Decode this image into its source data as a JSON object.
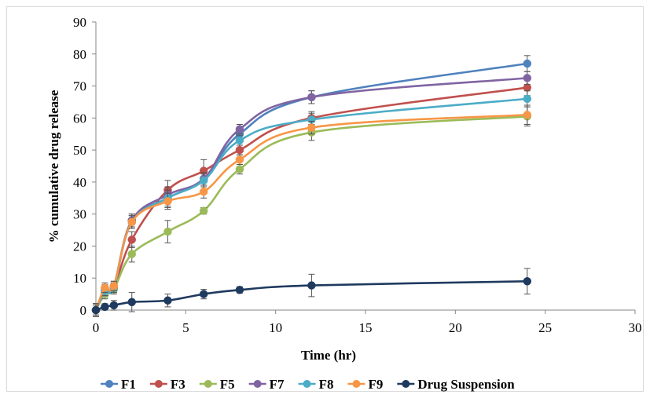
{
  "chart_data": {
    "type": "line",
    "title": "",
    "xlabel": "Time (hr)",
    "ylabel": "% cumulative drug release",
    "xlim": [
      0,
      30
    ],
    "ylim": [
      0,
      90
    ],
    "xticks": [
      0,
      5,
      10,
      15,
      20,
      25,
      30
    ],
    "yticks": [
      0,
      10,
      20,
      30,
      40,
      50,
      60,
      70,
      80,
      90
    ],
    "grid": false,
    "legend_position": "bottom",
    "x": [
      0,
      0.5,
      1,
      2,
      4,
      6,
      8,
      12,
      24
    ],
    "series": [
      {
        "name": "F1",
        "color": "#4F81BD",
        "values": [
          0,
          6.5,
          7.5,
          28,
          35,
          41,
          55,
          66.5,
          77
        ],
        "errors": [
          2,
          1.5,
          1.5,
          2,
          3,
          2,
          2,
          2,
          2.5
        ]
      },
      {
        "name": "F3",
        "color": "#C0504D",
        "values": [
          0,
          5.5,
          7,
          22,
          37.5,
          43.5,
          50,
          60,
          69.5
        ],
        "errors": [
          2,
          1.5,
          1.5,
          2.5,
          3,
          3.5,
          1.5,
          2,
          2.5
        ]
      },
      {
        "name": "F5",
        "color": "#9BBB59",
        "values": [
          0,
          5,
          6.5,
          17.5,
          24.5,
          31,
          44,
          55.5,
          60.5
        ],
        "errors": [
          2,
          1.5,
          1.5,
          2.5,
          3.5,
          1,
          1.5,
          2.5,
          3
        ]
      },
      {
        "name": "F7",
        "color": "#8064A2",
        "values": [
          0,
          6,
          7,
          28,
          36,
          41,
          56.5,
          66.5,
          72.5
        ],
        "errors": [
          2,
          1.5,
          1.5,
          2,
          2.5,
          2,
          1.5,
          2,
          2
        ]
      },
      {
        "name": "F8",
        "color": "#4BACC6",
        "values": [
          0,
          6,
          7,
          27.5,
          35,
          40.5,
          53,
          59.5,
          66
        ],
        "errors": [
          2,
          1.5,
          1.5,
          2,
          2.5,
          2,
          1.5,
          2,
          2.5
        ]
      },
      {
        "name": "F9",
        "color": "#F79646",
        "values": [
          0,
          7,
          7.5,
          27.5,
          34,
          37,
          47,
          57,
          61
        ],
        "errors": [
          2,
          1.5,
          1.5,
          2,
          2.5,
          2,
          1.5,
          2,
          3
        ]
      },
      {
        "name": "Drug Suspension",
        "color": "#1F3A5F",
        "values": [
          0,
          1,
          1.5,
          2.5,
          3,
          5,
          6.3,
          7.7,
          9
        ],
        "errors": [
          1.5,
          1,
          1.5,
          3,
          2,
          1.5,
          1,
          3.5,
          4
        ]
      }
    ]
  }
}
